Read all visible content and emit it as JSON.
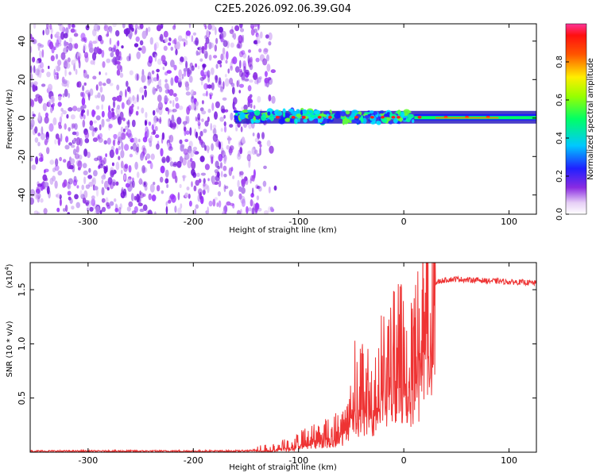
{
  "title": "C2E5.2026.092.06.39.G04",
  "chart_data": [
    {
      "type": "heatmap",
      "xlabel": "Height of straight line (km)",
      "ylabel": "Frequency (Hz)",
      "xlim": [
        -355,
        126
      ],
      "ylim": [
        -50,
        49
      ],
      "xticks": [
        -300,
        -200,
        -100,
        0,
        100
      ],
      "xtick_labels": [
        "-300",
        "-200",
        "-100",
        "0",
        "100"
      ],
      "yticks": [
        -40,
        -20,
        0,
        20,
        40
      ],
      "ytick_labels": [
        "-40",
        "-20",
        "0",
        "20",
        "40"
      ],
      "colorbar": {
        "label": "Normalized spectral amplitude",
        "range": [
          0,
          1
        ],
        "ticks": [
          0.0,
          0.2,
          0.4,
          0.6,
          0.8
        ],
        "tick_labels": [
          "0.0",
          "0.2",
          "0.4",
          "0.6",
          "0.8"
        ]
      },
      "noise_region_x": [
        -355,
        -122
      ],
      "signal_start_x": -160,
      "grid": false
    },
    {
      "type": "line",
      "xlabel": "Height of straight line (km)",
      "ylabel": "SNR (10 * v/v)",
      "y_multiplier_label": "(x10",
      "y_multiplier_exp": "4",
      "y_multiplier_close": ")",
      "xlim": [
        -355,
        126
      ],
      "ylim": [
        0,
        1.75
      ],
      "xticks": [
        -300,
        -200,
        -100,
        0,
        100
      ],
      "xtick_labels": [
        "-300",
        "-200",
        "-100",
        "0",
        "100"
      ],
      "yticks": [
        0.5,
        1.0,
        1.5
      ],
      "ytick_labels": [
        "0.5",
        "1.0",
        "1.5"
      ],
      "series": [
        {
          "color": "#ee3333",
          "x": [
            -355,
            -300,
            -250,
            -200,
            -160,
            -130,
            -110,
            -100,
            -90,
            -80,
            -70,
            -60,
            -55,
            -50,
            -45,
            -40,
            -35,
            -30,
            -25,
            -20,
            -15,
            -10,
            -5,
            0,
            5,
            10,
            15,
            20,
            25,
            30,
            35,
            40,
            50,
            60,
            70,
            80,
            90,
            100,
            110,
            126
          ],
          "y": [
            0.01,
            0.01,
            0.01,
            0.01,
            0.01,
            0.02,
            0.06,
            0.1,
            0.14,
            0.16,
            0.2,
            0.24,
            0.35,
            0.55,
            0.75,
            0.65,
            0.6,
            0.55,
            0.7,
            0.9,
            0.85,
            0.95,
            1.0,
            1.05,
            1.15,
            1.2,
            1.35,
            1.45,
            1.52,
            1.56,
            1.58,
            1.59,
            1.6,
            1.59,
            1.59,
            1.58,
            1.58,
            1.57,
            1.57,
            1.56
          ]
        }
      ],
      "grid": false
    }
  ]
}
